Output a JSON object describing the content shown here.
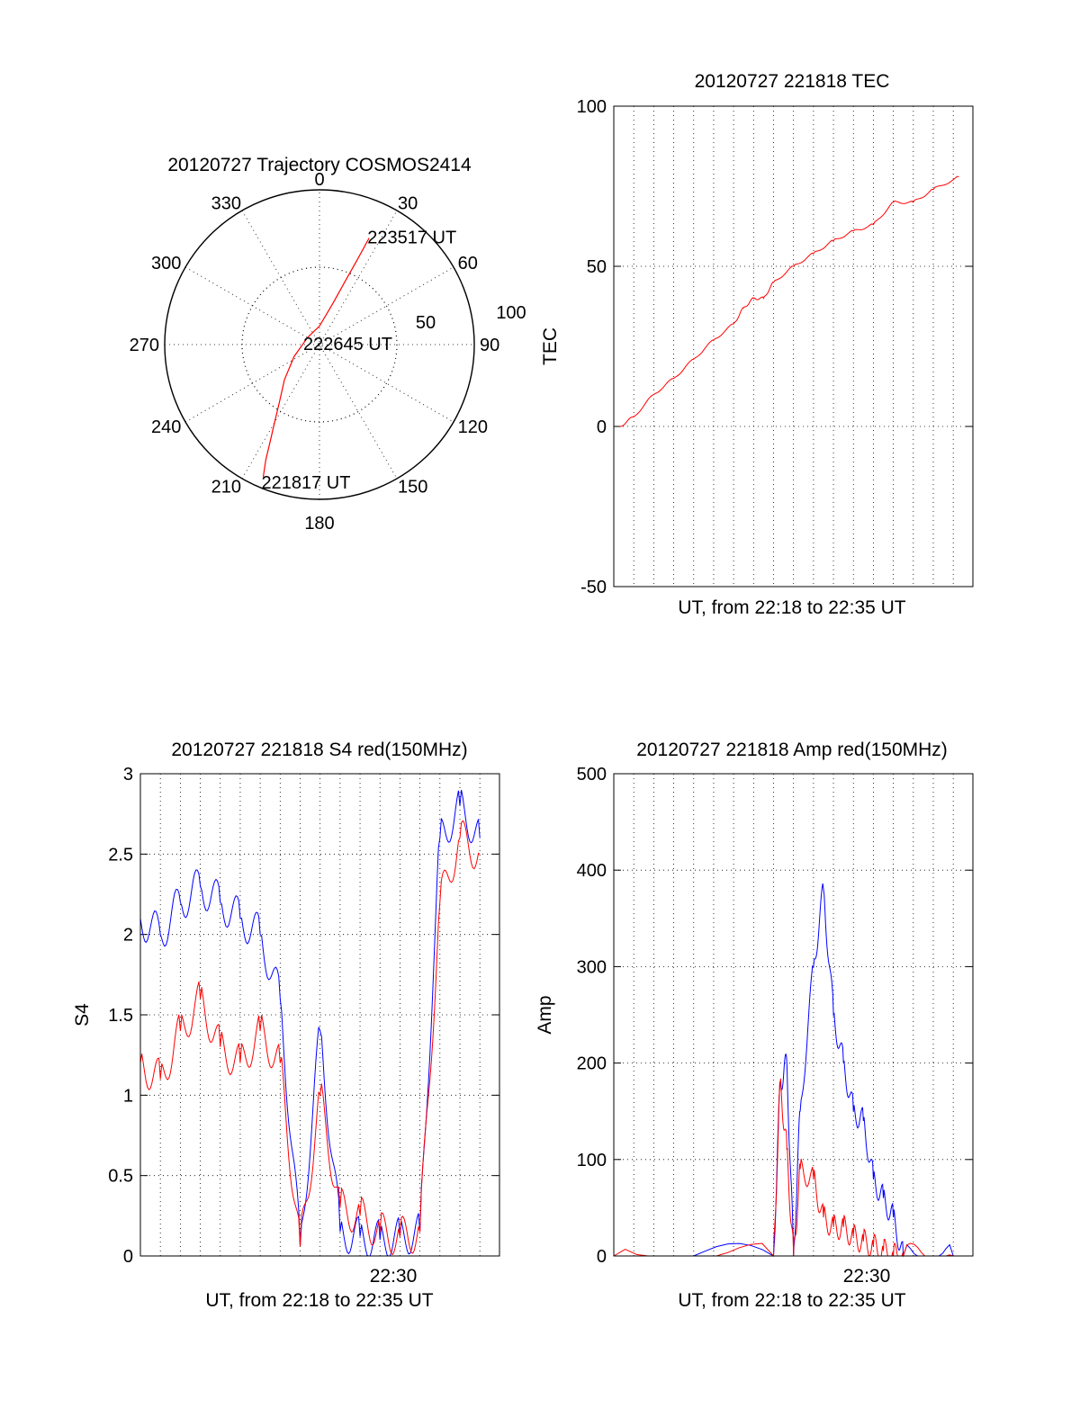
{
  "chart_data": [
    {
      "type": "polar",
      "title": "20120727 Trajectory COSMOS2414",
      "angle_labels": [
        "0",
        "30",
        "60",
        "90",
        "120",
        "150",
        "180",
        "210",
        "240",
        "270",
        "300",
        "330"
      ],
      "radial_labels": [
        "50",
        "100"
      ],
      "radial_ticks": [
        50,
        100
      ],
      "series": [
        {
          "color": "#ff0000",
          "points": [
            {
              "az": 203,
              "r": 93
            },
            {
              "az": 205,
              "r": 82
            },
            {
              "az": 207,
              "r": 70
            },
            {
              "az": 210,
              "r": 58
            },
            {
              "az": 215,
              "r": 45
            },
            {
              "az": 225,
              "r": 32
            },
            {
              "az": 245,
              "r": 18
            },
            {
              "az": 300,
              "r": 9
            },
            {
              "az": 0,
              "r": 12
            },
            {
              "az": 18,
              "r": 28
            },
            {
              "az": 22,
              "r": 44
            },
            {
              "az": 24,
              "r": 60
            },
            {
              "az": 25,
              "r": 76
            }
          ]
        }
      ],
      "annotations": [
        {
          "text": "223517 UT",
          "az": 25,
          "r": 76
        },
        {
          "text": "222645 UT",
          "az": 0,
          "r": 0
        },
        {
          "text": "221817 UT",
          "az": 203,
          "r": 93
        }
      ]
    },
    {
      "type": "line",
      "title": "20120727 221818 TEC",
      "xlabel": "UT, from 22:18 to 22:35 UT",
      "ylabel": "TEC",
      "ylim": [
        -50,
        100
      ],
      "yticks": [
        "-50",
        "0",
        "50",
        "100"
      ],
      "x_range": [
        "22:18",
        "22:35"
      ],
      "series": [
        {
          "color": "#ff0000",
          "x": [
            "22:18:18",
            "22:19:00",
            "22:20:00",
            "22:21:00",
            "22:22:00",
            "22:23:00",
            "22:24:00",
            "22:24:30",
            "22:25:00",
            "22:25:30",
            "22:26:00",
            "22:27:00",
            "22:28:00",
            "22:29:00",
            "22:30:00",
            "22:31:00",
            "22:32:00",
            "22:33:00",
            "22:34:00",
            "22:35:17"
          ],
          "y": [
            0,
            3,
            10,
            15,
            21,
            27,
            32,
            37,
            40,
            40,
            45,
            50,
            54,
            58,
            61,
            63,
            70,
            70,
            74,
            78
          ]
        }
      ]
    },
    {
      "type": "line",
      "title": "20120727 221818 S4 red(150MHz)",
      "xlabel": "UT, from 22:18 to 22:35 UT",
      "ylabel": "S4",
      "ylim": [
        0,
        3
      ],
      "yticks": [
        "0",
        "0.5",
        "1",
        "1.5",
        "2",
        "2.5",
        "3"
      ],
      "xtick_label": "22:30",
      "x_range": [
        "22:18",
        "22:35"
      ],
      "series": [
        {
          "color": "#0000ff",
          "x": [
            "22:18",
            "22:19",
            "22:20",
            "22:21",
            "22:22",
            "22:23",
            "22:24",
            "22:25",
            "22:26",
            "22:27",
            "22:28",
            "22:29",
            "22:30",
            "22:31",
            "22:32",
            "22:33",
            "22:34",
            "22:35"
          ],
          "y": [
            2.1,
            2.0,
            2.2,
            2.3,
            2.2,
            2.1,
            2.0,
            1.6,
            0.06,
            1.4,
            0.15,
            0.12,
            0.1,
            0.12,
            0.15,
            2.6,
            2.8,
            2.6
          ]
        },
        {
          "color": "#ff0000",
          "x": [
            "22:18",
            "22:19",
            "22:20",
            "22:21",
            "22:22",
            "22:23",
            "22:24",
            "22:25",
            "22:26",
            "22:27",
            "22:28",
            "22:29",
            "22:30",
            "22:31",
            "22:32",
            "22:33",
            "22:34",
            "22:35"
          ],
          "y": [
            1.2,
            1.1,
            1.4,
            1.6,
            1.3,
            1.2,
            1.4,
            1.2,
            0.06,
            1.0,
            0.3,
            0.25,
            0.15,
            0.12,
            0.15,
            2.2,
            2.6,
            2.5
          ]
        }
      ]
    },
    {
      "type": "line",
      "title": "20120727 221818 Amp red(150MHz)",
      "xlabel": "UT, from 22:18 to 22:35 UT",
      "ylabel": "Amp",
      "ylim": [
        0,
        500
      ],
      "yticks": [
        "0",
        "100",
        "200",
        "300",
        "400",
        "500"
      ],
      "xtick_label": "22:30",
      "x_range": [
        "22:18",
        "22:35"
      ],
      "series": [
        {
          "color": "#0000ff",
          "x": [
            "22:18",
            "22:26",
            "22:26:20",
            "22:26:40",
            "22:27",
            "22:27:20",
            "22:28",
            "22:28:30",
            "22:29",
            "22:29:30",
            "22:30",
            "22:30:30",
            "22:31",
            "22:31:30",
            "22:32",
            "22:32:30",
            "22:35"
          ],
          "y": [
            0,
            0,
            180,
            200,
            0,
            150,
            300,
            380,
            250,
            200,
            150,
            140,
            80,
            60,
            40,
            0,
            0
          ]
        },
        {
          "color": "#ff0000",
          "x": [
            "22:18",
            "22:26",
            "22:26:20",
            "22:26:40",
            "22:27",
            "22:27:20",
            "22:28",
            "22:28:30",
            "22:29",
            "22:29:30",
            "22:30",
            "22:30:30",
            "22:31",
            "22:31:30",
            "22:32",
            "22:32:30",
            "22:35"
          ],
          "y": [
            0,
            0,
            180,
            110,
            0,
            90,
            80,
            40,
            30,
            30,
            20,
            15,
            10,
            5,
            0,
            0,
            0
          ]
        }
      ]
    }
  ]
}
